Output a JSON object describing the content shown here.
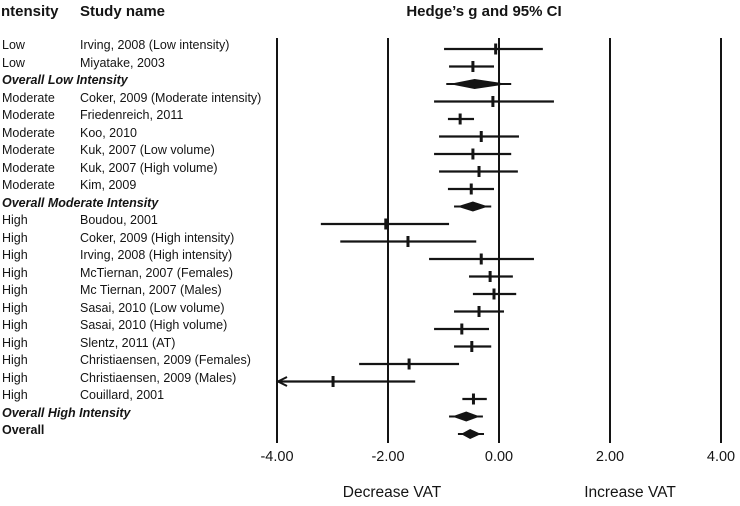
{
  "page": {
    "background": "#ffffff",
    "ink": "#141414"
  },
  "headers": {
    "intensity_col": "ntensity",
    "study_col": "Study name",
    "effect_col": "Hedge’s g and 95% CI"
  },
  "axis": {
    "tick_labels": [
      "-4.00",
      "-2.00",
      "0.00",
      "2.00",
      "4.00"
    ],
    "tick_values": [
      -4,
      -2,
      0,
      2,
      4
    ],
    "xmin": -4,
    "xmax": 4,
    "left_label": "Decrease VAT",
    "right_label": "Increase VAT"
  },
  "chart_data": {
    "type": "forest",
    "title": "Hedge’s g and 95% CI",
    "xlabel_left": "Decrease VAT",
    "xlabel_right": "Increase VAT",
    "xlim": [
      -4,
      4
    ],
    "grid": "vertical lines at each tick",
    "legend": "none",
    "rows": [
      {
        "kind": "study",
        "intensity": "Low",
        "study": "Irving, 2008 (Low intensity)",
        "g": -0.06,
        "lower": -0.99,
        "upper": 0.79
      },
      {
        "kind": "study",
        "intensity": "Low",
        "study": "Miyatake, 2003",
        "g": -0.47,
        "lower": -0.9,
        "upper": -0.09
      },
      {
        "kind": "summary",
        "label": "Overall Low Intensity",
        "italic": true,
        "g": -0.44,
        "lower": -0.95,
        "upper": 0.22
      },
      {
        "kind": "study",
        "intensity": "Moderate",
        "study": "Coker, 2009 (Moderate intensity)",
        "g": -0.11,
        "lower": -1.17,
        "upper": 0.99
      },
      {
        "kind": "study",
        "intensity": "Moderate",
        "study": "Friedenreich, 2011",
        "g": -0.7,
        "lower": -0.92,
        "upper": -0.45
      },
      {
        "kind": "study",
        "intensity": "Moderate",
        "study": "Koo, 2010",
        "g": -0.32,
        "lower": -1.08,
        "upper": 0.36
      },
      {
        "kind": "study",
        "intensity": "Moderate",
        "study": "Kuk, 2007 (Low volume)",
        "g": -0.47,
        "lower": -1.17,
        "upper": 0.22
      },
      {
        "kind": "study",
        "intensity": "Moderate",
        "study": "Kuk, 2007 (High volume)",
        "g": -0.36,
        "lower": -1.08,
        "upper": 0.34
      },
      {
        "kind": "study",
        "intensity": "Moderate",
        "study": "Kim, 2009",
        "g": -0.5,
        "lower": -0.92,
        "upper": -0.09
      },
      {
        "kind": "summary",
        "label": "Overall Moderate Intensity",
        "italic": true,
        "g": -0.47,
        "lower": -0.81,
        "upper": -0.14
      },
      {
        "kind": "study",
        "intensity": "High",
        "study": "Boudou, 2001",
        "g": -2.04,
        "lower": -3.21,
        "upper": -0.9
      },
      {
        "kind": "study",
        "intensity": "High",
        "study": "Coker, 2009 (High intensity)",
        "g": -1.64,
        "lower": -2.86,
        "upper": -0.41
      },
      {
        "kind": "study",
        "intensity": "High",
        "study": "Irving, 2008 (High intensity)",
        "g": -0.32,
        "lower": -1.26,
        "upper": 0.63
      },
      {
        "kind": "study",
        "intensity": "High",
        "study": "McTiernan, 2007 (Females)",
        "g": -0.16,
        "lower": -0.54,
        "upper": 0.25
      },
      {
        "kind": "study",
        "intensity": "High",
        "study": "Mc Tiernan, 2007 (Males)",
        "g": -0.09,
        "lower": -0.47,
        "upper": 0.31
      },
      {
        "kind": "study",
        "intensity": "High",
        "study": "Sasai, 2010 (Low volume)",
        "g": -0.36,
        "lower": -0.81,
        "upper": 0.09
      },
      {
        "kind": "study",
        "intensity": "High",
        "study": "Sasai, 2010 (High volume)",
        "g": -0.67,
        "lower": -1.17,
        "upper": -0.18
      },
      {
        "kind": "study",
        "intensity": "High",
        "study": "Slentz, 2011 (AT)",
        "g": -0.49,
        "lower": -0.81,
        "upper": -0.14
      },
      {
        "kind": "study",
        "intensity": "High",
        "study": "Christiaensen, 2009 (Females)",
        "g": -1.62,
        "lower": -2.52,
        "upper": -0.72
      },
      {
        "kind": "study",
        "intensity": "High",
        "study": "Christiaensen, 2009 (Males)",
        "g": -2.99,
        "lower": -4.0,
        "upper": -1.51,
        "ci_truncated_left": true
      },
      {
        "kind": "study",
        "intensity": "High",
        "study": "Couillard, 2001",
        "g": -0.46,
        "lower": -0.66,
        "upper": -0.22
      },
      {
        "kind": "summary",
        "label": "Overall High Intensity",
        "italic": true,
        "g": -0.59,
        "lower": -0.9,
        "upper": -0.29
      },
      {
        "kind": "summary",
        "label": "Overall",
        "italic": false,
        "g": -0.52,
        "lower": -0.74,
        "upper": -0.27
      }
    ]
  }
}
